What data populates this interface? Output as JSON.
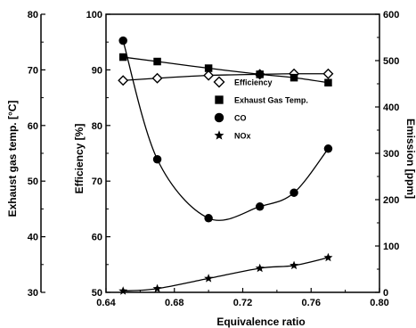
{
  "chart_data": {
    "type": "line",
    "xlabel": "Equivalence ratio",
    "xlim": [
      0.64,
      0.8
    ],
    "xticks": [
      "0.64",
      "0.68",
      "0.72",
      "0.76",
      "0.80"
    ],
    "axes": {
      "far_left": {
        "label": "Exhaust gas temp. [°C]",
        "lim": [
          30,
          80
        ],
        "ticks": [
          "30",
          "40",
          "50",
          "60",
          "70",
          "80"
        ]
      },
      "left": {
        "label": "Efficiency [%]",
        "lim": [
          50,
          100
        ],
        "ticks": [
          "50",
          "60",
          "70",
          "80",
          "90",
          "100"
        ]
      },
      "right": {
        "label": "Emission [ppm]",
        "lim": [
          0,
          600
        ],
        "ticks": [
          "0",
          "100",
          "200",
          "300",
          "400",
          "500",
          "600"
        ]
      }
    },
    "legend_position": "center-right",
    "series": [
      {
        "name": "Efficiency",
        "axis": "left",
        "marker": "diamond",
        "x": [
          0.65,
          0.67,
          0.7,
          0.73,
          0.75,
          0.77
        ],
        "y": [
          88.1,
          88.5,
          89.0,
          89.2,
          89.3,
          89.3
        ]
      },
      {
        "name": "Exhaust Gas Temp.",
        "axis": "left",
        "marker": "square",
        "x": [
          0.65,
          0.67,
          0.7,
          0.73,
          0.75,
          0.77
        ],
        "y": [
          92.3,
          91.5,
          90.3,
          89.2,
          88.6,
          87.7
        ]
      },
      {
        "name": "CO",
        "axis": "right",
        "marker": "circle",
        "x": [
          0.65,
          0.67,
          0.7,
          0.73,
          0.75,
          0.77
        ],
        "y": [
          543,
          287,
          160,
          185,
          215,
          310
        ]
      },
      {
        "name": "NOx",
        "axis": "right",
        "marker": "star",
        "x": [
          0.65,
          0.67,
          0.7,
          0.73,
          0.75,
          0.77
        ],
        "y": [
          3,
          8,
          30,
          52,
          58,
          75
        ]
      }
    ]
  }
}
